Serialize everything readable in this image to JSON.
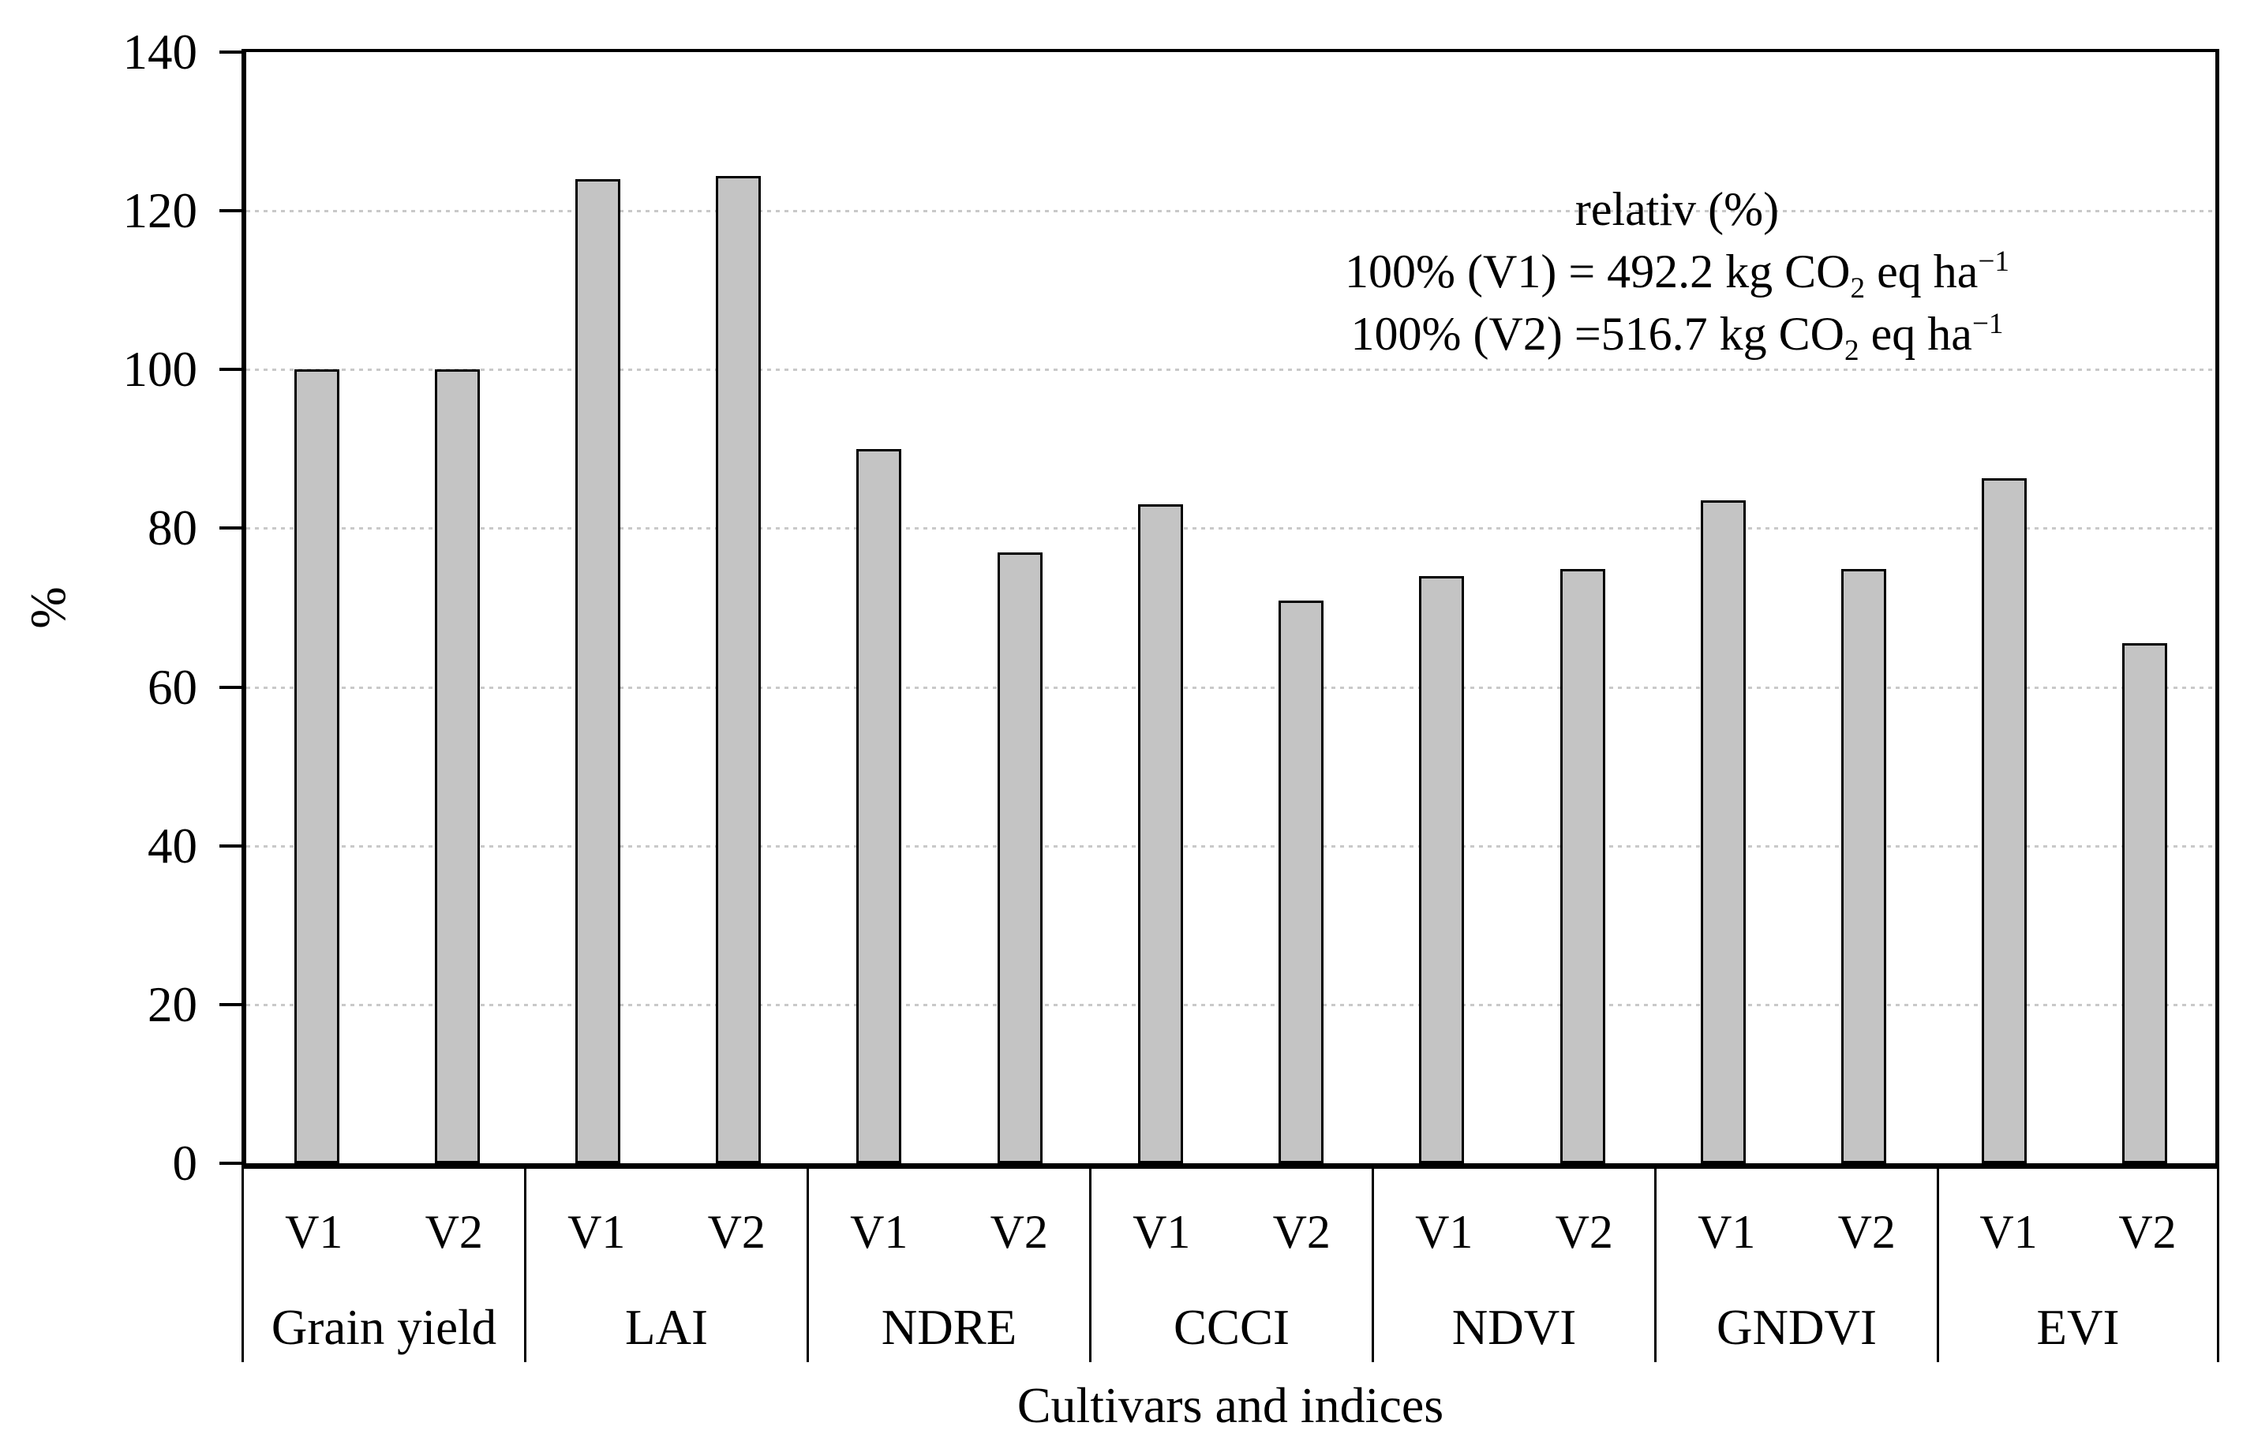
{
  "chart_data": {
    "type": "bar",
    "title": "",
    "xlabel": "Cultivars and indices",
    "ylabel": "%",
    "ylim": [
      0,
      140
    ],
    "yticks": [
      0,
      20,
      40,
      60,
      80,
      100,
      120,
      140
    ],
    "grid": "horizontal-dotted",
    "legend_position": "none",
    "categories": [
      "Grain yield",
      "LAI",
      "NDRE",
      "CCCI",
      "NDVI",
      "GNDVI",
      "EVI"
    ],
    "series": [
      {
        "name": "V1",
        "values": [
          100,
          124,
          90,
          83,
          74,
          83.5,
          86.3
        ]
      },
      {
        "name": "V2",
        "values": [
          100,
          124.4,
          77,
          70.9,
          74.9,
          74.9,
          65.5
        ]
      }
    ],
    "bar_fill": "#c4c4c4",
    "bar_border": "#000000",
    "gridline_color": "#c9c9c9",
    "annotation": {
      "title": "relativ (%)",
      "lines": [
        {
          "prefix": "100% (V1) = 492.2 kg CO",
          "sub": "2",
          "mid": " eq ha",
          "sup": "−1"
        },
        {
          "prefix": "100% (V2) =516.7 kg CO",
          "sub": "2",
          "mid": " eq ha",
          "sup": "−1"
        }
      ]
    }
  }
}
